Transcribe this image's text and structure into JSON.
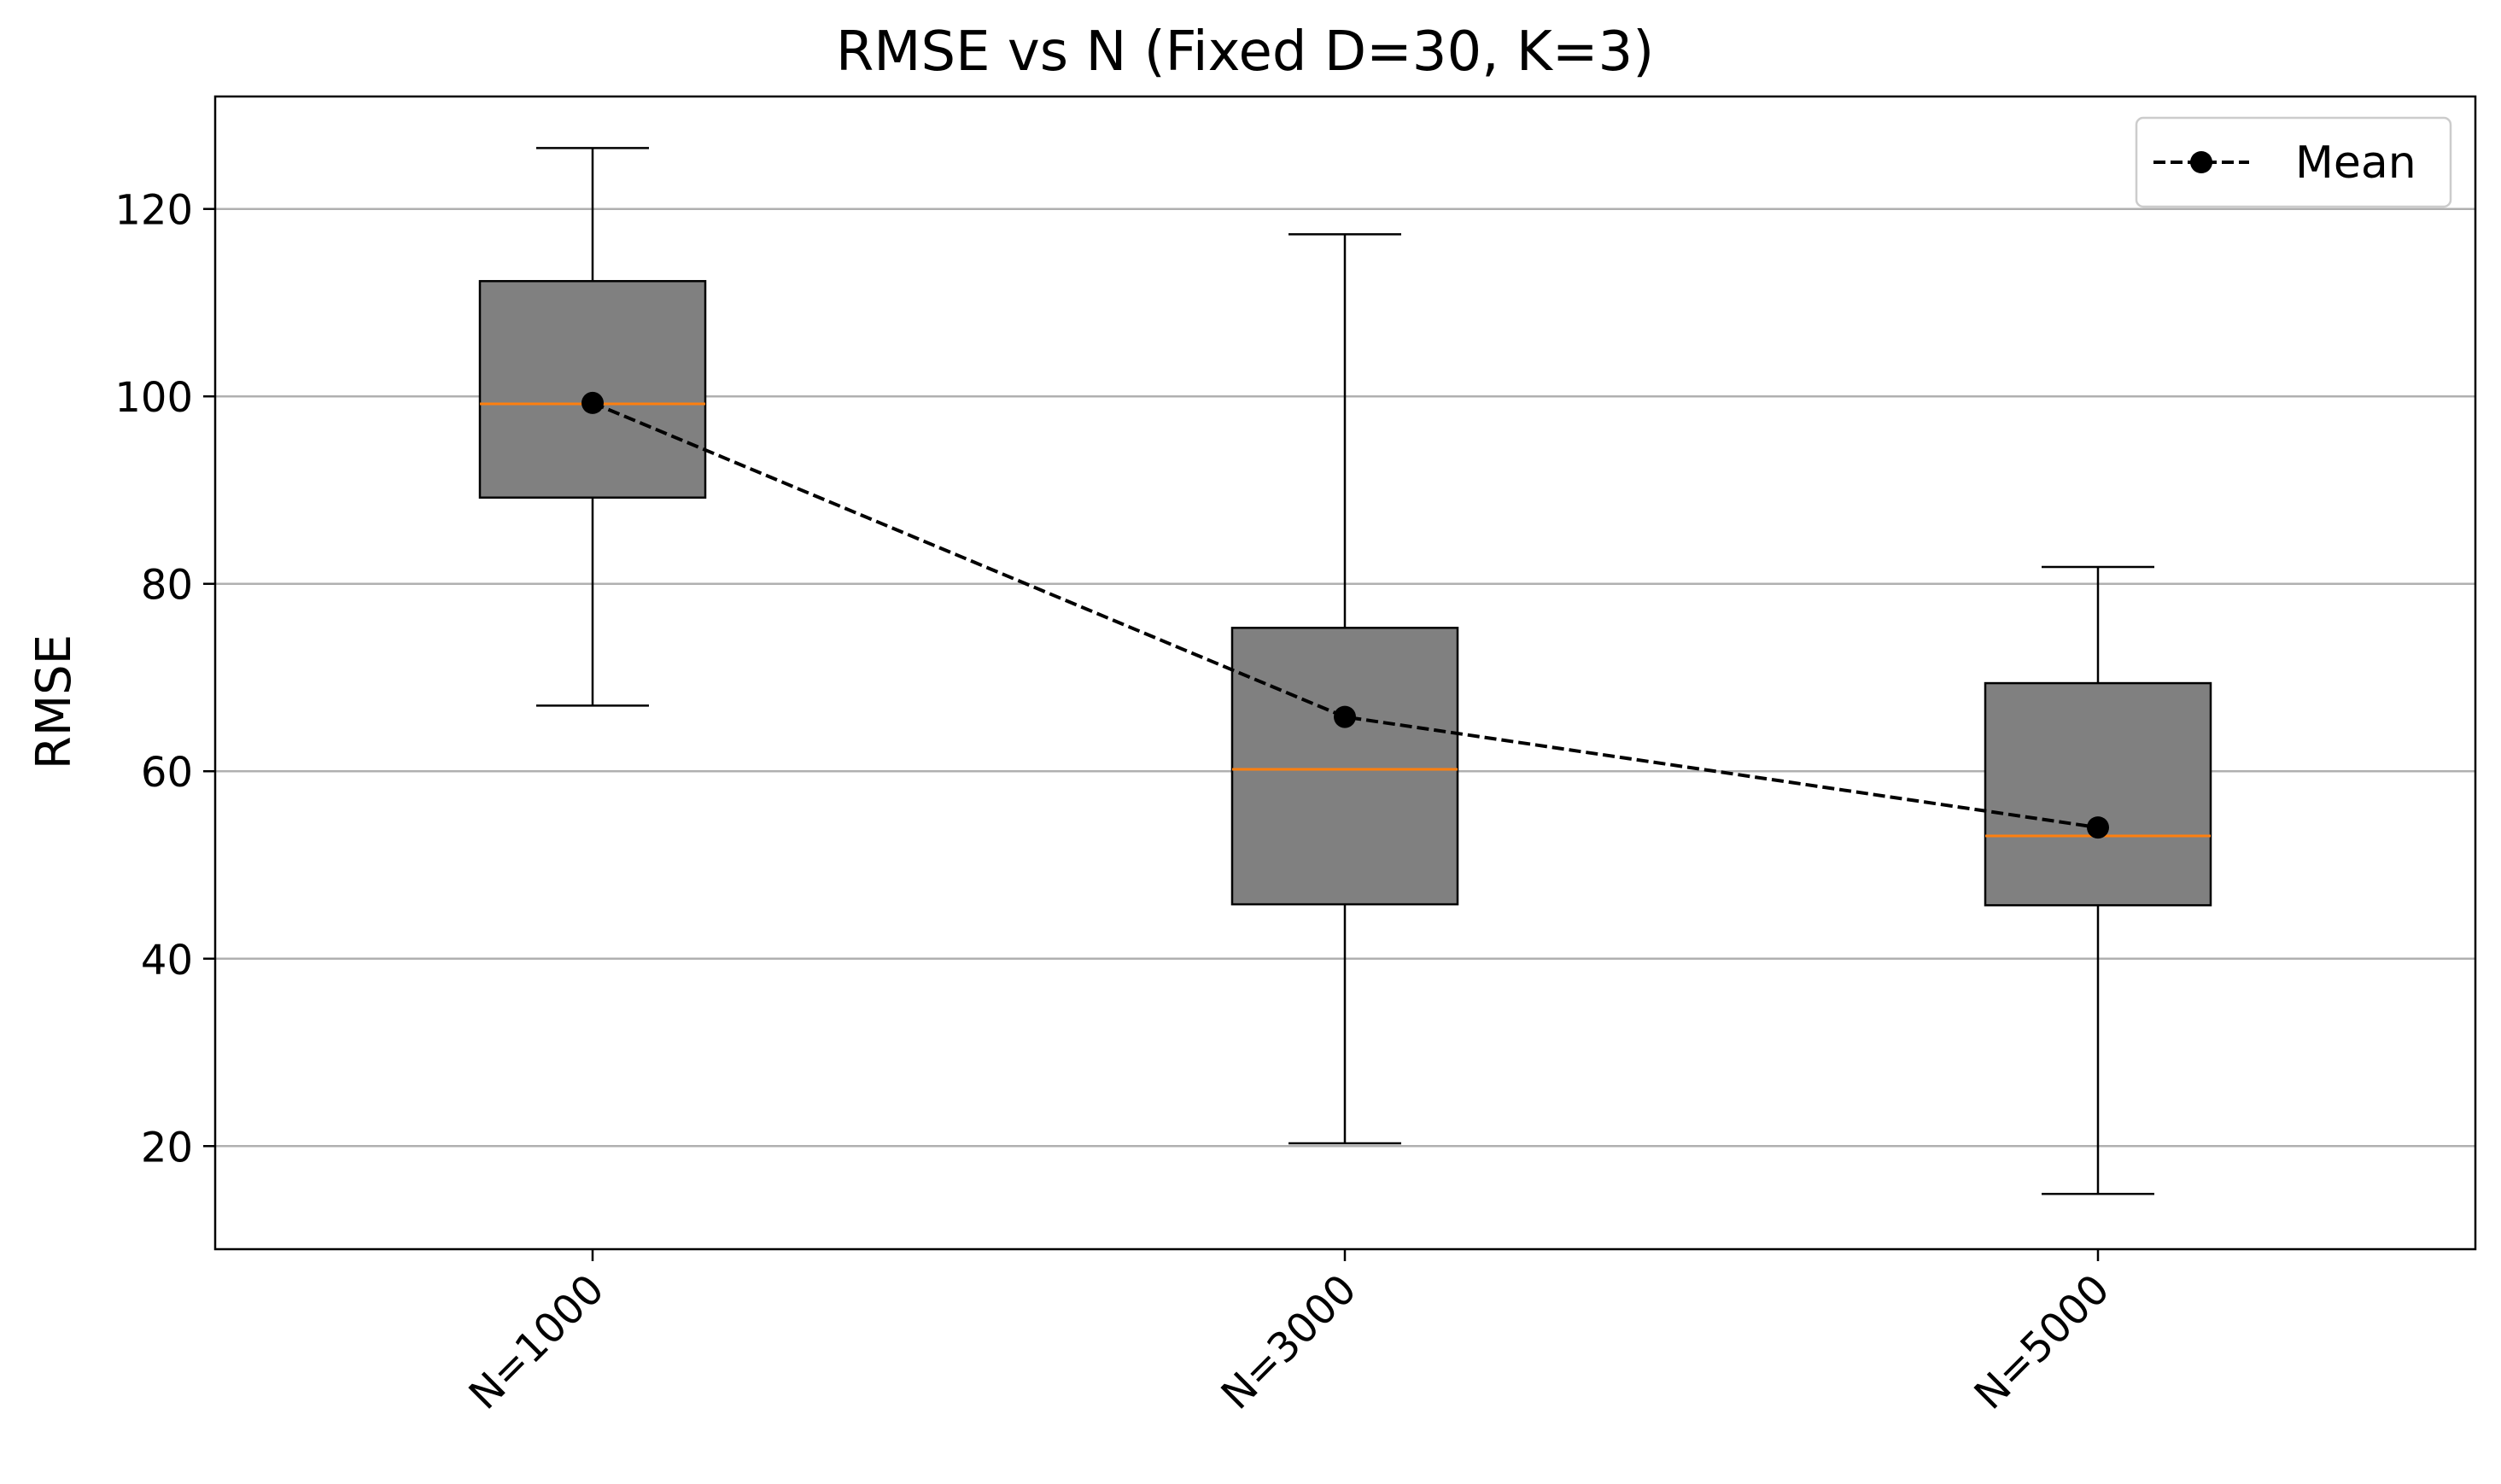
{
  "chart_data": {
    "type": "box",
    "title": "RMSE vs N (Fixed D=30, K=3)",
    "xlabel": "",
    "ylabel": "RMSE",
    "ylim": [
      9,
      132
    ],
    "yticks": [
      20,
      40,
      60,
      80,
      100,
      120
    ],
    "grid": "y",
    "categories": [
      "N=1000",
      "N=3000",
      "N=5000"
    ],
    "boxes": [
      {
        "category": "N=1000",
        "whisker_low": 67,
        "q1": 89.2,
        "median": 99.2,
        "q3": 112.3,
        "whisker_high": 126.5
      },
      {
        "category": "N=3000",
        "whisker_low": 20.3,
        "q1": 45.8,
        "median": 60.2,
        "q3": 75.3,
        "whisker_high": 117.3
      },
      {
        "category": "N=5000",
        "whisker_low": 14.9,
        "q1": 45.7,
        "median": 53.1,
        "q3": 69.4,
        "whisker_high": 81.8
      }
    ],
    "mean_series": {
      "name": "Mean",
      "values": [
        99.3,
        65.8,
        54.0
      ]
    },
    "legend": {
      "position": "top-right",
      "entries": [
        "Mean"
      ]
    },
    "colors": {
      "box_fill": "#808080",
      "box_edge": "#000000",
      "median": "#ff7f0e",
      "mean": "#000000",
      "grid": "#b0b0b0"
    }
  }
}
